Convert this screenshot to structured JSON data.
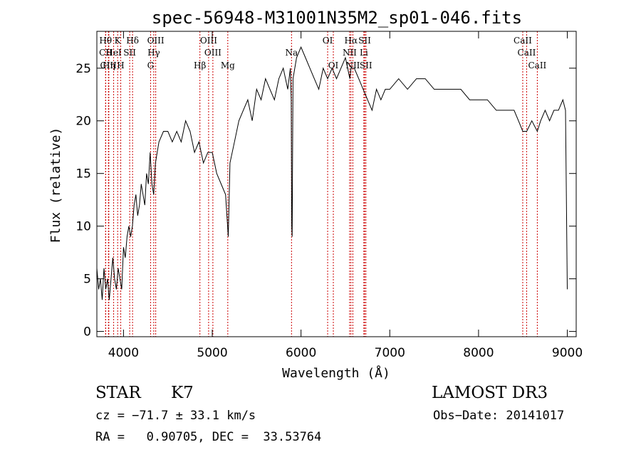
{
  "chart_data": {
    "type": "line",
    "title": "spec-56948-M31001N35M2_sp01-046.fits",
    "xlabel": "Wavelength (Å)",
    "ylabel": "Flux (relative)",
    "xlim": [
      3700,
      9100
    ],
    "ylim": [
      -0.5,
      28.5
    ],
    "xticks": [
      4000,
      5000,
      6000,
      7000,
      8000,
      9000
    ],
    "yticks": [
      0,
      5,
      10,
      15,
      20,
      25
    ],
    "line_color": "#cc0000",
    "series": [
      {
        "name": "flux",
        "x": [
          3700,
          3720,
          3740,
          3760,
          3780,
          3800,
          3820,
          3840,
          3860,
          3880,
          3900,
          3920,
          3940,
          3960,
          3980,
          4000,
          4020,
          4040,
          4060,
          4080,
          4100,
          4120,
          4140,
          4160,
          4180,
          4200,
          4220,
          4240,
          4260,
          4280,
          4300,
          4320,
          4340,
          4360,
          4380,
          4400,
          4450,
          4500,
          4550,
          4600,
          4650,
          4700,
          4750,
          4800,
          4850,
          4900,
          4950,
          5000,
          5050,
          5100,
          5150,
          5180,
          5200,
          5250,
          5300,
          5350,
          5400,
          5450,
          5500,
          5550,
          5600,
          5650,
          5700,
          5750,
          5800,
          5850,
          5880,
          5890,
          5895,
          5900,
          5910,
          5950,
          6000,
          6050,
          6100,
          6150,
          6200,
          6250,
          6300,
          6350,
          6400,
          6450,
          6500,
          6550,
          6563,
          6600,
          6650,
          6700,
          6750,
          6800,
          6850,
          6900,
          6950,
          7000,
          7100,
          7200,
          7300,
          7400,
          7500,
          7600,
          7700,
          7800,
          7900,
          8000,
          8100,
          8200,
          8300,
          8400,
          8450,
          8498,
          8542,
          8600,
          8662,
          8700,
          8750,
          8800,
          8850,
          8900,
          8950,
          8980,
          9000
        ],
        "values": [
          6,
          4,
          5,
          3,
          6,
          4,
          5,
          3,
          5,
          7,
          5,
          4,
          6,
          5,
          4,
          8,
          7,
          9,
          10,
          9,
          10,
          12,
          13,
          11,
          12,
          14,
          13,
          12,
          15,
          14,
          17,
          14,
          13,
          16,
          17,
          18,
          19,
          19,
          18,
          19,
          18,
          20,
          19,
          17,
          18,
          16,
          17,
          17,
          15,
          14,
          13,
          9,
          16,
          18,
          20,
          21,
          22,
          20,
          23,
          22,
          24,
          23,
          22,
          24,
          25,
          23,
          25,
          22,
          10,
          9,
          24,
          26,
          27,
          26,
          25,
          24,
          23,
          25,
          24,
          25,
          24,
          25,
          26,
          24,
          25,
          25,
          24,
          23,
          22,
          21,
          23,
          22,
          23,
          23,
          24,
          23,
          24,
          24,
          23,
          23,
          23,
          23,
          22,
          22,
          22,
          21,
          21,
          21,
          20,
          19,
          19,
          20,
          19,
          20,
          21,
          20,
          21,
          21,
          22,
          21,
          4
        ]
      }
    ],
    "spectral_lines": [
      {
        "label": "Hθ",
        "x": 3798,
        "row": 1
      },
      {
        "label": "CII",
        "x": 3800,
        "row": 2
      },
      {
        "label": "CIII",
        "x": 3830,
        "row": 3
      },
      {
        "label": "K",
        "x": 3934,
        "row": 1
      },
      {
        "label": "HeI",
        "x": 3889,
        "row": 2
      },
      {
        "label": "Hη",
        "x": 3835,
        "row": 3
      },
      {
        "label": "H",
        "x": 3969,
        "row": 3
      },
      {
        "label": "SII",
        "x": 4070,
        "row": 2
      },
      {
        "label": "Hδ",
        "x": 4102,
        "row": 1
      },
      {
        "label": "OIII",
        "x": 4363,
        "row": 1
      },
      {
        "label": "Hγ",
        "x": 4341,
        "row": 2
      },
      {
        "label": "G",
        "x": 4305,
        "row": 3
      },
      {
        "label": "OIII",
        "x": 4959,
        "row": 1
      },
      {
        "label": "OIII",
        "x": 5007,
        "row": 2
      },
      {
        "label": "Hβ",
        "x": 4861,
        "row": 3
      },
      {
        "label": "Mg",
        "x": 5175,
        "row": 3
      },
      {
        "label": "Na",
        "x": 5893,
        "row": 2
      },
      {
        "label": "OI",
        "x": 6300,
        "row": 1
      },
      {
        "label": "OI",
        "x": 6364,
        "row": 3
      },
      {
        "label": "Hα",
        "x": 6563,
        "row": 1
      },
      {
        "label": "NII",
        "x": 6548,
        "row": 2
      },
      {
        "label": "NII",
        "x": 6584,
        "row": 3
      },
      {
        "label": "SII",
        "x": 6717,
        "row": 1
      },
      {
        "label": "Li",
        "x": 6708,
        "row": 2
      },
      {
        "label": "SII",
        "x": 6731,
        "row": 3
      },
      {
        "label": "CaII",
        "x": 8498,
        "row": 1
      },
      {
        "label": "CaII",
        "x": 8542,
        "row": 2
      },
      {
        "label": "CaII",
        "x": 8662,
        "row": 3
      }
    ]
  },
  "info": {
    "object_class": "STAR",
    "subclass": "K7",
    "survey": "LAMOST DR3",
    "redshift": "cz = −71.7 ± 33.1 km/s",
    "obs_date": "Obs−Date: 20141017",
    "coords": "RA =   0.90705, DEC =  33.53764"
  }
}
